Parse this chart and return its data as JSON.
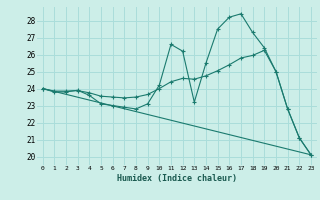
{
  "title": "",
  "xlabel": "Humidex (Indice chaleur)",
  "bg_color": "#cceee8",
  "grid_color": "#aaddda",
  "line_color": "#1a7a6e",
  "xlim": [
    -0.5,
    23.5
  ],
  "ylim": [
    19.5,
    28.8
  ],
  "yticks": [
    20,
    21,
    22,
    23,
    24,
    25,
    26,
    27,
    28
  ],
  "xticks": [
    0,
    1,
    2,
    3,
    4,
    5,
    6,
    7,
    8,
    9,
    10,
    11,
    12,
    13,
    14,
    15,
    16,
    17,
    18,
    19,
    20,
    21,
    22,
    23
  ],
  "line1_x": [
    0,
    1,
    2,
    3,
    4,
    5,
    6,
    7,
    8,
    9,
    10,
    11,
    12,
    13,
    14,
    15,
    16,
    17,
    18,
    19,
    20,
    21,
    22,
    23
  ],
  "line1_y": [
    24.0,
    23.8,
    23.8,
    23.9,
    23.6,
    23.1,
    23.0,
    22.9,
    22.8,
    23.1,
    24.2,
    26.6,
    26.2,
    23.2,
    25.5,
    27.5,
    28.2,
    28.4,
    27.3,
    26.4,
    25.0,
    22.8,
    21.1,
    20.1
  ],
  "line2_x": [
    0,
    1,
    2,
    3,
    4,
    5,
    6,
    7,
    8,
    9,
    10,
    11,
    12,
    13,
    14,
    15,
    16,
    17,
    18,
    19,
    20,
    21,
    22,
    23
  ],
  "line2_y": [
    24.0,
    23.85,
    23.85,
    23.88,
    23.75,
    23.55,
    23.5,
    23.45,
    23.5,
    23.65,
    24.0,
    24.4,
    24.6,
    24.55,
    24.75,
    25.05,
    25.4,
    25.8,
    25.95,
    26.25,
    25.0,
    22.8,
    21.1,
    20.1
  ],
  "line3_x": [
    0,
    23
  ],
  "line3_y": [
    24.0,
    20.1
  ]
}
